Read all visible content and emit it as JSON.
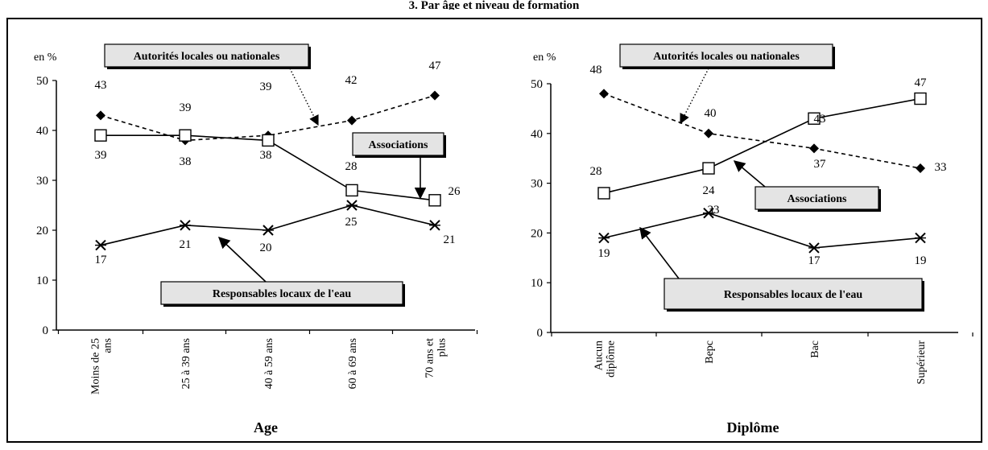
{
  "page_title": "3. Par âge et niveau de formation",
  "chart_data": [
    {
      "type": "line",
      "unit_label": "en %",
      "xlabel": "Age",
      "ylabel": "",
      "ylim": [
        0,
        50
      ],
      "yticks": [
        0,
        10,
        20,
        30,
        40,
        50
      ],
      "categories": [
        "Moins de 25 ans",
        "25 à 39 ans",
        "40 à 59 ans",
        "60 à 69 ans",
        "70 ans et plus"
      ],
      "series": [
        {
          "name": "Autorités locales ou nationales",
          "marker": "diamond",
          "style": "dashed",
          "values": [
            43,
            38,
            39,
            42,
            47
          ],
          "labels": [
            "43",
            "",
            "39",
            "42",
            "47"
          ]
        },
        {
          "name": "Associations",
          "marker": "square",
          "style": "solid",
          "values": [
            39,
            39,
            38,
            28,
            26
          ],
          "labels": [
            "39",
            "39",
            "38",
            "28",
            "26"
          ]
        },
        {
          "name": "Responsables locaux de l'eau",
          "marker": "asterisk",
          "style": "solid",
          "values": [
            17,
            21,
            20,
            25,
            21
          ],
          "labels": [
            "17",
            "21",
            "20",
            "25",
            "21"
          ]
        }
      ],
      "extra_labels": [
        "38"
      ]
    },
    {
      "type": "line",
      "unit_label": "en %",
      "xlabel": "Diplôme",
      "ylabel": "",
      "ylim": [
        0,
        50
      ],
      "yticks": [
        0,
        10,
        20,
        30,
        40,
        50
      ],
      "categories": [
        "Aucun diplôme",
        "Bepc",
        "Bac",
        "Supérieur"
      ],
      "series": [
        {
          "name": "Autorités locales ou nationales",
          "marker": "diamond",
          "style": "dashed",
          "values": [
            48,
            40,
            37,
            33
          ],
          "labels": [
            "48",
            "40",
            "37",
            "33"
          ]
        },
        {
          "name": "Associations",
          "marker": "square",
          "style": "solid",
          "values": [
            28,
            33,
            43,
            47
          ],
          "labels": [
            "28",
            "33",
            "43",
            "47"
          ]
        },
        {
          "name": "Responsables locaux de l'eau",
          "marker": "asterisk",
          "style": "solid",
          "values": [
            19,
            24,
            17,
            19
          ],
          "labels": [
            "19",
            "24",
            "17",
            "19"
          ]
        }
      ]
    }
  ]
}
